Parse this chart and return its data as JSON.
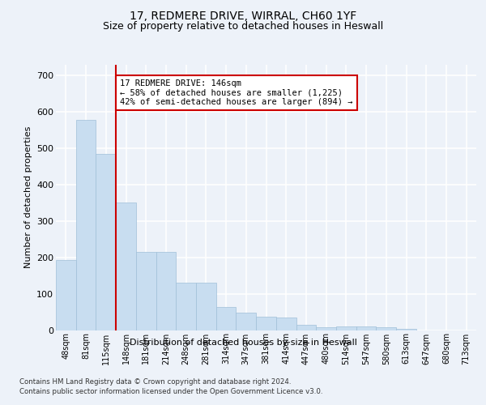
{
  "title1": "17, REDMERE DRIVE, WIRRAL, CH60 1YF",
  "title2": "Size of property relative to detached houses in Heswall",
  "xlabel": "Distribution of detached houses by size in Heswall",
  "ylabel": "Number of detached properties",
  "bar_color": "#c8ddf0",
  "bar_edge_color": "#a0bfd8",
  "vline_color": "#cc0000",
  "vline_index": 3,
  "annotation_text": "17 REDMERE DRIVE: 146sqm\n← 58% of detached houses are smaller (1,225)\n42% of semi-detached houses are larger (894) →",
  "annotation_box_color": "#ffffff",
  "annotation_box_edge": "#cc0000",
  "categories": [
    "48sqm",
    "81sqm",
    "115sqm",
    "148sqm",
    "181sqm",
    "214sqm",
    "248sqm",
    "281sqm",
    "314sqm",
    "347sqm",
    "381sqm",
    "414sqm",
    "447sqm",
    "480sqm",
    "514sqm",
    "547sqm",
    "580sqm",
    "613sqm",
    "647sqm",
    "680sqm",
    "713sqm"
  ],
  "values": [
    193,
    578,
    484,
    352,
    216,
    216,
    130,
    130,
    64,
    47,
    36,
    35,
    14,
    7,
    10,
    10,
    8,
    4,
    0,
    0,
    0
  ],
  "ylim": [
    0,
    730
  ],
  "yticks": [
    0,
    100,
    200,
    300,
    400,
    500,
    600,
    700
  ],
  "background_color": "#edf2f9",
  "plot_bg_color": "#edf2f9",
  "grid_color": "#ffffff",
  "footer1": "Contains HM Land Registry data © Crown copyright and database right 2024.",
  "footer2": "Contains public sector information licensed under the Open Government Licence v3.0.",
  "title_fontsize": 10,
  "subtitle_fontsize": 9
}
